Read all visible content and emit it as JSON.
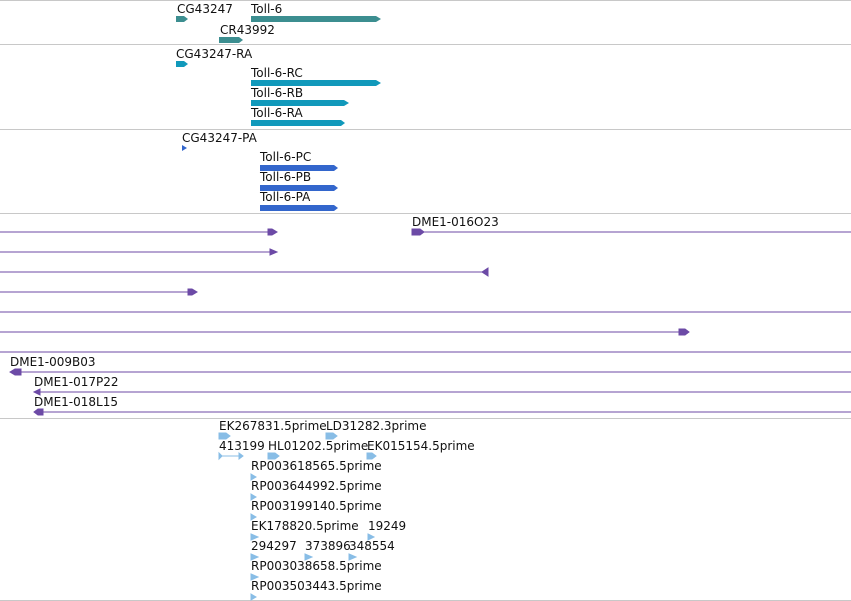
{
  "colors": {
    "gene": "#3c8e90",
    "flybase_transcript": "#1199bb",
    "refseq_transcript": "#3366cc",
    "clone": "#6c4aa6",
    "est": "#88bde6"
  },
  "tracks": {
    "genes": {
      "labels": [
        "CG43247",
        "Toll-6",
        "CR43992"
      ]
    },
    "flybase_transcripts": {
      "labels": [
        "CG43247-RA",
        "Toll-6-RC",
        "Toll-6-RB",
        "Toll-6-RA"
      ]
    },
    "refseq_transcripts": {
      "labels": [
        "CG43247-PA",
        "Toll-6-PC",
        "Toll-6-PB",
        "Toll-6-PA"
      ]
    },
    "clones": {
      "labels": [
        "DME1-016O23",
        "DME1-009B03",
        "DME1-017P22",
        "DME1-018L15"
      ]
    },
    "ests": {
      "labels": [
        "EK267831.5prime",
        "LD31282.3prime",
        "413199",
        "HL01202.5prime",
        "EK015154.5prime",
        "RP003618565.5prime",
        "RP003644992.5prime",
        "RP003199140.5prime",
        "EK178820.5prime",
        "19249",
        "294297",
        "373896",
        "348554",
        "RP003038658.5prime",
        "RP003503443.5prime"
      ]
    }
  }
}
